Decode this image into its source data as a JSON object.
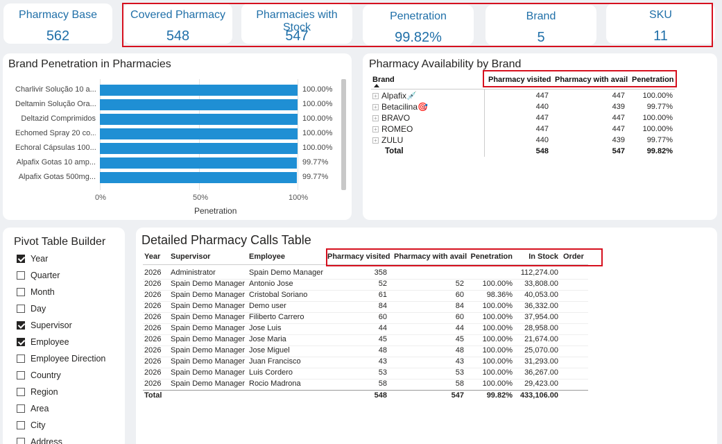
{
  "kpis": [
    {
      "title": "Pharmacy Base",
      "value": "562"
    },
    {
      "title": "Covered Pharmacy",
      "value": "548"
    },
    {
      "title": "Pharmacies with Stock",
      "value": "547"
    },
    {
      "title": "Penetration",
      "value": "99.82%"
    },
    {
      "title": "Brand",
      "value": "5"
    },
    {
      "title": "SKU",
      "value": "11"
    }
  ],
  "brand_penetration": {
    "title": "Brand Penetration in Pharmacies",
    "xlabel": "Penetration",
    "xticks": [
      "0%",
      "50%",
      "100%"
    ]
  },
  "chart_data": {
    "type": "bar",
    "orientation": "horizontal",
    "title": "Brand Penetration in Pharmacies",
    "xlabel": "Penetration",
    "ylabel": "",
    "xlim": [
      0,
      100
    ],
    "categories": [
      "Charlivir Solução 10 a...",
      "Deltamin Solução Ora...",
      "Deltazid Comprimidos",
      "Echomed Spray 20 co...",
      "Echoral Cápsulas 100...",
      "Alpafix Gotas 10 amp...",
      "Alpafix Gotas 500mg..."
    ],
    "values": [
      100.0,
      100.0,
      100.0,
      100.0,
      100.0,
      99.77,
      99.77
    ],
    "value_labels": [
      "100.00%",
      "100.00%",
      "100.00%",
      "100.00%",
      "100.00%",
      "99.77%",
      "99.77%"
    ],
    "color": "#1f8fd4"
  },
  "availability": {
    "title": "Pharmacy Availability by Brand",
    "headers": [
      "Brand",
      "Pharmacy visited",
      "Pharmacy with avail",
      "Penetration"
    ],
    "rows": [
      {
        "brand": "Alpafix",
        "emoji": "💉",
        "visited": "447",
        "avail": "447",
        "pen": "100.00%"
      },
      {
        "brand": "Betacilina",
        "emoji": "🎯",
        "visited": "440",
        "avail": "439",
        "pen": "99.77%"
      },
      {
        "brand": "BRAVO",
        "emoji": "",
        "visited": "447",
        "avail": "447",
        "pen": "100.00%"
      },
      {
        "brand": "ROMEO",
        "emoji": "",
        "visited": "447",
        "avail": "447",
        "pen": "100.00%"
      },
      {
        "brand": "ZULU",
        "emoji": "",
        "visited": "440",
        "avail": "439",
        "pen": "99.77%"
      }
    ],
    "total": {
      "brand": "Total",
      "visited": "548",
      "avail": "547",
      "pen": "99.82%"
    }
  },
  "pivot": {
    "title": "Pivot Table Builder",
    "items": [
      {
        "label": "Year",
        "checked": true
      },
      {
        "label": "Quarter",
        "checked": false
      },
      {
        "label": "Month",
        "checked": false
      },
      {
        "label": "Day",
        "checked": false
      },
      {
        "label": "Supervisor",
        "checked": true
      },
      {
        "label": "Employee",
        "checked": true
      },
      {
        "label": "Employee Direction",
        "checked": false
      },
      {
        "label": "Country",
        "checked": false
      },
      {
        "label": "Region",
        "checked": false
      },
      {
        "label": "Area",
        "checked": false
      },
      {
        "label": "City",
        "checked": false
      },
      {
        "label": "Address",
        "checked": false
      }
    ]
  },
  "detail": {
    "title": "Detailed Pharmacy Calls Table",
    "headers": [
      "Year",
      "Supervisor",
      "Employee",
      "Pharmacy visited",
      "Pharmacy with avail",
      "Penetration",
      "In Stock",
      "Order"
    ],
    "rows": [
      [
        "2026",
        "Administrator",
        "Spain Demo Manager",
        "358",
        "",
        "",
        "112,274.00",
        ""
      ],
      [
        "2026",
        "Spain Demo Manager",
        "Antonio Jose",
        "52",
        "52",
        "100.00%",
        "33,808.00",
        ""
      ],
      [
        "2026",
        "Spain Demo Manager",
        "Cristobal Soriano",
        "61",
        "60",
        "98.36%",
        "40,053.00",
        ""
      ],
      [
        "2026",
        "Spain Demo Manager",
        "Demo user",
        "84",
        "84",
        "100.00%",
        "36,332.00",
        ""
      ],
      [
        "2026",
        "Spain Demo Manager",
        "Filiberto Carrero",
        "60",
        "60",
        "100.00%",
        "37,954.00",
        ""
      ],
      [
        "2026",
        "Spain Demo Manager",
        "Jose Luis",
        "44",
        "44",
        "100.00%",
        "28,958.00",
        ""
      ],
      [
        "2026",
        "Spain Demo Manager",
        "Jose Maria",
        "45",
        "45",
        "100.00%",
        "21,674.00",
        ""
      ],
      [
        "2026",
        "Spain Demo Manager",
        "Jose Miguel",
        "48",
        "48",
        "100.00%",
        "25,070.00",
        ""
      ],
      [
        "2026",
        "Spain Demo Manager",
        "Juan Francisco",
        "43",
        "43",
        "100.00%",
        "31,293.00",
        ""
      ],
      [
        "2026",
        "Spain Demo Manager",
        "Luis Cordero",
        "53",
        "53",
        "100.00%",
        "36,267.00",
        ""
      ],
      [
        "2026",
        "Spain Demo Manager",
        "Rocio Madrona",
        "58",
        "58",
        "100.00%",
        "29,423.00",
        ""
      ]
    ],
    "total": [
      "Total",
      "",
      "",
      "548",
      "547",
      "99.82%",
      "433,106.00",
      ""
    ]
  }
}
